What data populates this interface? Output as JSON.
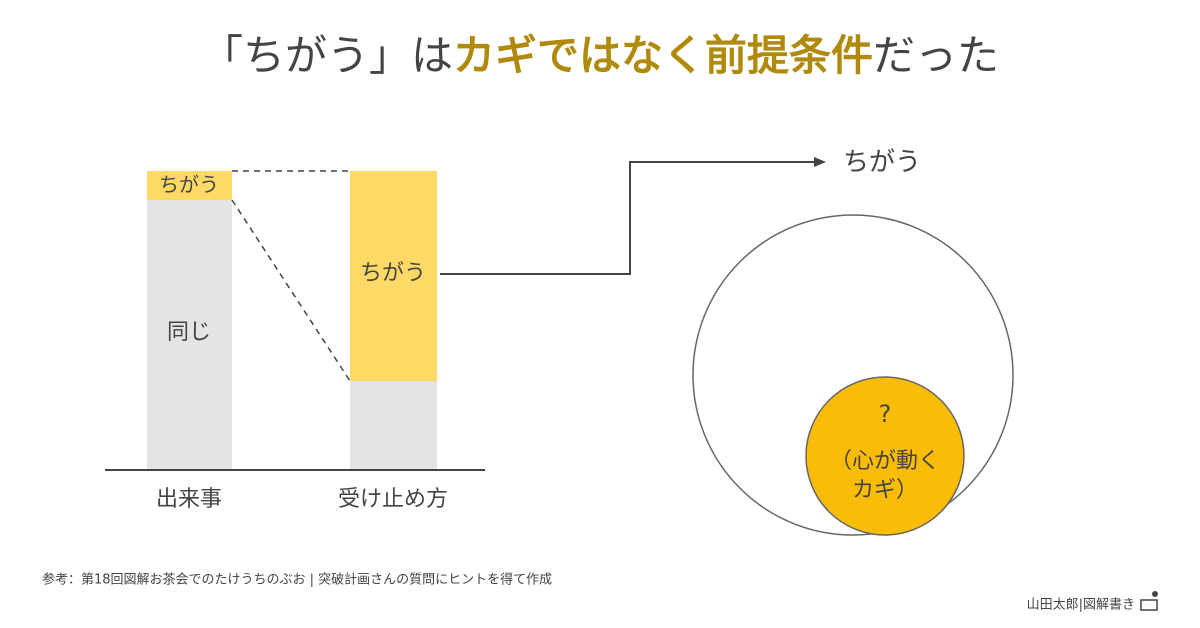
{
  "title": {
    "pre": "「ちがう」は",
    "highlight": "カギではなく前提条件",
    "post": "だった"
  },
  "left_bar": {
    "top": "ちがう",
    "bottom": "同じ",
    "label": "出来事"
  },
  "right_bar": {
    "top": "ちがう",
    "label": "受け止め方"
  },
  "circle": {
    "outer_label": "ちがう",
    "inner_lines": [
      "?",
      "（心が動く",
      "カギ）"
    ]
  },
  "footnote": "参考：第18回図解お茶会でのたけうちのぶお | 突破計画さんの質問にヒントを得て作成",
  "author": "山田太郎|図解書き"
}
